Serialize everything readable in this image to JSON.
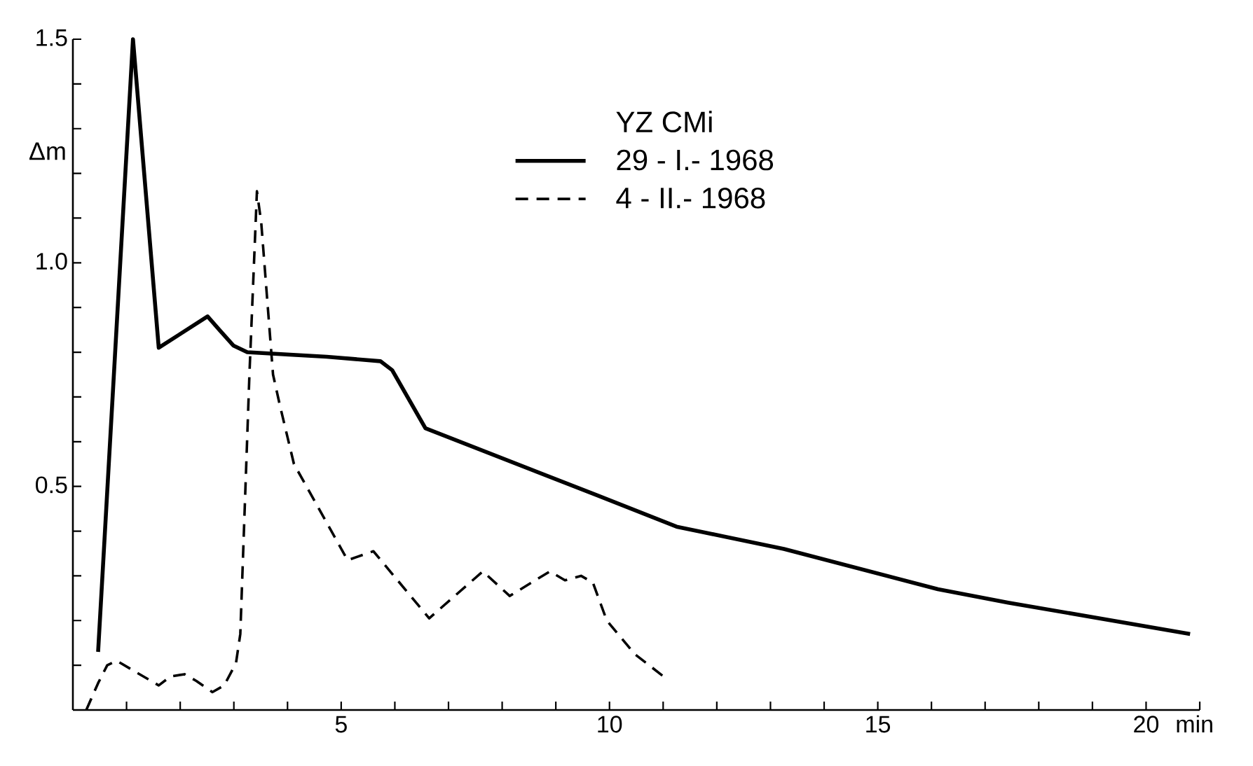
{
  "chart_data": {
    "type": "line",
    "xlabel": "min",
    "ylabel": "Δm",
    "legend_title": "YZ CMi",
    "legend": "top",
    "xlim": [
      0,
      21
    ],
    "ylim": [
      0,
      1.5
    ],
    "xticks": [
      {
        "value": 1,
        "label": null
      },
      {
        "value": 2,
        "label": null
      },
      {
        "value": 3,
        "label": null
      },
      {
        "value": 4,
        "label": null
      },
      5,
      {
        "value": 6,
        "label": null
      },
      {
        "value": 7,
        "label": null
      },
      {
        "value": 8,
        "label": null
      },
      {
        "value": 9,
        "label": null
      },
      10,
      {
        "value": 11,
        "label": null
      },
      {
        "value": 12,
        "label": null
      },
      {
        "value": 13,
        "label": null
      },
      {
        "value": 14,
        "label": null
      },
      15,
      {
        "value": 16,
        "label": null
      },
      {
        "value": 17,
        "label": null
      },
      {
        "value": 18,
        "label": null
      },
      {
        "value": 19,
        "label": null
      },
      20,
      {
        "value": 21,
        "label": null
      }
    ],
    "yticks": [
      {
        "value": 0.1,
        "label": null
      },
      {
        "value": 0.2,
        "label": null
      },
      {
        "value": 0.3,
        "label": null
      },
      {
        "value": 0.4,
        "label": null
      },
      0.5,
      {
        "value": 0.6,
        "label": null
      },
      {
        "value": 0.7,
        "label": null
      },
      {
        "value": 0.8,
        "label": null
      },
      {
        "value": 0.9,
        "label": null
      },
      {
        "value": 1,
        "label": "1.0"
      },
      {
        "value": 1.1,
        "label": null
      },
      {
        "value": 1.2,
        "label": null
      },
      {
        "value": 1.3,
        "label": null
      },
      {
        "value": 1.4,
        "label": null
      },
      1.5
    ],
    "series": [
      {
        "name": "29 - I.- 1968",
        "color": "#000000",
        "line_style": "solid",
        "x": [
          0.47,
          1.12,
          1.6,
          2.51,
          2.73,
          2.99,
          3.25,
          4.73,
          5.73,
          5.95,
          6.57,
          9.77,
          11.25,
          13.25,
          16.12,
          17.43,
          20.82
        ],
        "values": [
          0.13,
          1.5,
          0.81,
          0.88,
          0.85,
          0.815,
          0.8,
          0.79,
          0.78,
          0.76,
          0.63,
          0.48,
          0.41,
          0.36,
          0.27,
          0.24,
          0.17
        ]
      },
      {
        "name": "4 - II.- 1968",
        "color": "#000000",
        "line_style": "dashed",
        "x": [
          0.25,
          0.47,
          0.64,
          0.82,
          1.17,
          1.6,
          1.82,
          2.08,
          2.3,
          2.6,
          2.82,
          3.04,
          3.12,
          3.29,
          3.43,
          3.51,
          3.73,
          3.86,
          4.12,
          5.12,
          5.6,
          6.64,
          7.64,
          8.14,
          8.89,
          9.17,
          9.47,
          9.69,
          9.95,
          10.47,
          11.06
        ],
        "values": [
          0,
          0.06,
          0.1,
          0.11,
          0.085,
          0.055,
          0.075,
          0.08,
          0.065,
          0.04,
          0.055,
          0.105,
          0.17,
          0.75,
          1.16,
          1.09,
          0.75,
          0.68,
          0.55,
          0.335,
          0.355,
          0.205,
          0.31,
          0.255,
          0.31,
          0.29,
          0.3,
          0.285,
          0.2,
          0.125,
          0.07
        ]
      }
    ]
  }
}
